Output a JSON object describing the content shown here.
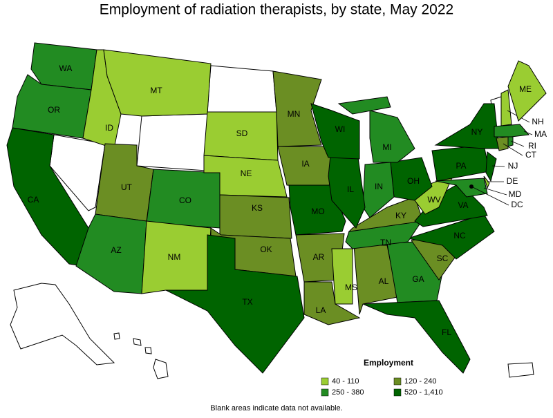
{
  "title": "Employment of radiation therapists, by state, May 2022",
  "legend": {
    "title": "Employment",
    "items": [
      {
        "label": "40 - 110",
        "color": "#9acd32"
      },
      {
        "label": "120 - 240",
        "color": "#6b8e23"
      },
      {
        "label": "250 - 380",
        "color": "#228b22"
      },
      {
        "label": "520 - 1,410",
        "color": "#006400"
      }
    ]
  },
  "states": [
    {
      "label": "WA",
      "group": 2
    },
    {
      "label": "OR",
      "group": 2
    },
    {
      "label": "CA",
      "group": 3
    },
    {
      "label": "ID",
      "group": 0
    },
    {
      "label": "MT",
      "group": 0
    },
    {
      "label": "UT",
      "group": 1
    },
    {
      "label": "AZ",
      "group": 2
    },
    {
      "label": "CO",
      "group": 2
    },
    {
      "label": "NM",
      "group": 0
    },
    {
      "label": "SD",
      "group": 0
    },
    {
      "label": "NE",
      "group": 0
    },
    {
      "label": "KS",
      "group": 1
    },
    {
      "label": "OK",
      "group": 1
    },
    {
      "label": "TX",
      "group": 3
    },
    {
      "label": "MN",
      "group": 1
    },
    {
      "label": "IA",
      "group": 1
    },
    {
      "label": "MO",
      "group": 3
    },
    {
      "label": "AR",
      "group": 1
    },
    {
      "label": "LA",
      "group": 1
    },
    {
      "label": "MS",
      "group": 0
    },
    {
      "label": "AL",
      "group": 1
    },
    {
      "label": "GA",
      "group": 2
    },
    {
      "label": "FL",
      "group": 3
    },
    {
      "label": "SC",
      "group": 1
    },
    {
      "label": "NC",
      "group": 3
    },
    {
      "label": "TN",
      "group": 2
    },
    {
      "label": "KY",
      "group": 1
    },
    {
      "label": "VA",
      "group": 3
    },
    {
      "label": "WV",
      "group": 0
    },
    {
      "label": "OH",
      "group": 3
    },
    {
      "label": "IN",
      "group": 2
    },
    {
      "label": "IL",
      "group": 3
    },
    {
      "label": "WI",
      "group": 3
    },
    {
      "label": "MI",
      "group": 2
    },
    {
      "label": "PA",
      "group": 3
    },
    {
      "label": "NY",
      "group": 3
    },
    {
      "label": "NJ",
      "group": 3
    },
    {
      "label": "DE",
      "group": 0
    },
    {
      "label": "MD",
      "group": 2
    },
    {
      "label": "DC",
      "group": null
    },
    {
      "label": "CT",
      "group": 1
    },
    {
      "label": "RI",
      "group": 2
    },
    {
      "label": "MA",
      "group": 2
    },
    {
      "label": "NH",
      "group": 0
    },
    {
      "label": "ME",
      "group": 0
    }
  ],
  "footnote": "Blank areas indicate data not available."
}
